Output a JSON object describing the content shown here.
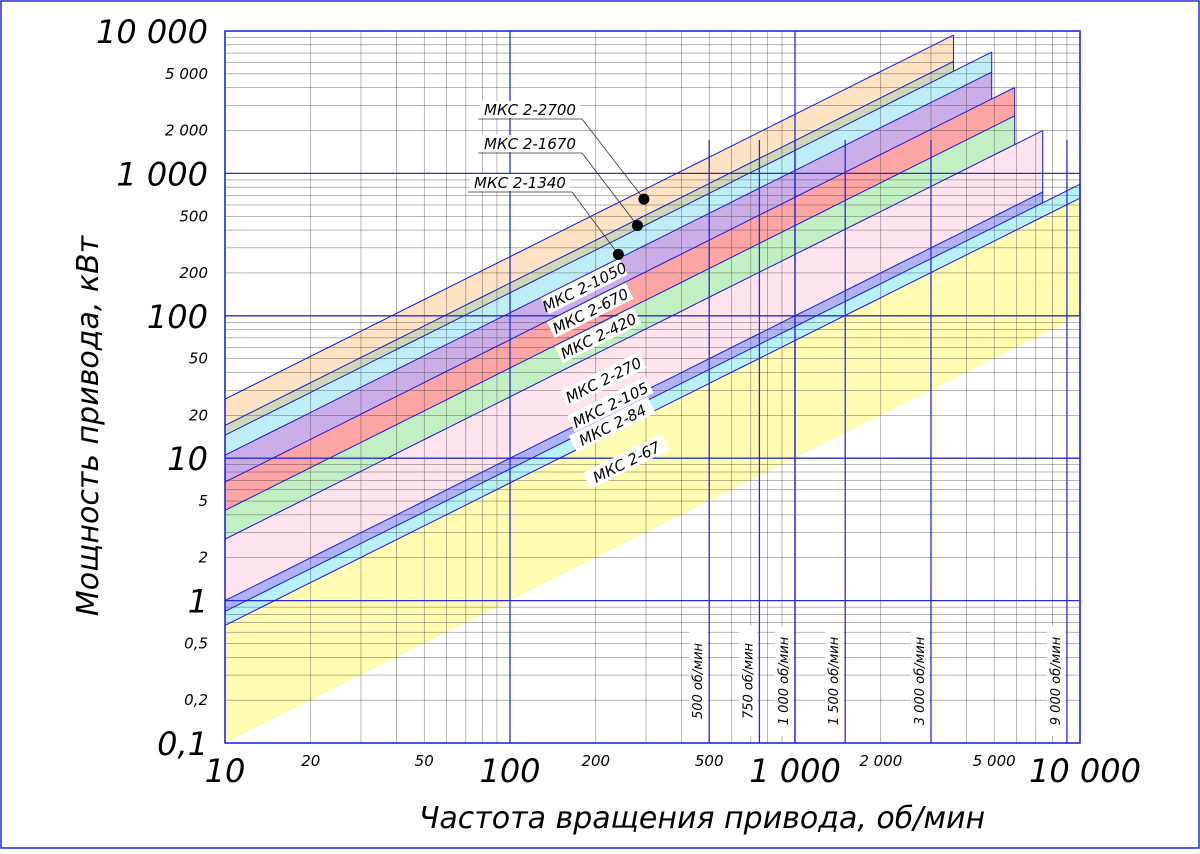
{
  "chart_data": {
    "type": "area",
    "xlabel": "Частота вращения привода, об/мин",
    "ylabel": "Мощность привода, кВт",
    "x_scale": "log",
    "y_scale": "log",
    "xlim": [
      10,
      10000
    ],
    "ylim": [
      0.1,
      10000
    ],
    "x_tick_labels_major": [
      {
        "v": 10,
        "t": "10"
      },
      {
        "v": 100,
        "t": "100"
      },
      {
        "v": 1000,
        "t": "1 000"
      },
      {
        "v": 10000,
        "t": "10 000"
      }
    ],
    "x_tick_labels_minor": [
      {
        "v": 20,
        "t": "20"
      },
      {
        "v": 50,
        "t": "50"
      },
      {
        "v": 200,
        "t": "200"
      },
      {
        "v": 500,
        "t": "500"
      },
      {
        "v": 2000,
        "t": "2 000"
      },
      {
        "v": 5000,
        "t": "5 000"
      }
    ],
    "y_tick_labels_major": [
      {
        "v": 0.1,
        "t": "0,1"
      },
      {
        "v": 1,
        "t": "1"
      },
      {
        "v": 10,
        "t": "10"
      },
      {
        "v": 100,
        "t": "100"
      },
      {
        "v": 1000,
        "t": "1 000"
      },
      {
        "v": 10000,
        "t": "10 000"
      }
    ],
    "y_tick_labels_minor": [
      {
        "v": 0.2,
        "t": "0,2"
      },
      {
        "v": 0.5,
        "t": "0,5"
      },
      {
        "v": 2,
        "t": "2"
      },
      {
        "v": 5,
        "t": "5"
      },
      {
        "v": 20,
        "t": "20"
      },
      {
        "v": 50,
        "t": "50"
      },
      {
        "v": 200,
        "t": "200"
      },
      {
        "v": 500,
        "t": "500"
      },
      {
        "v": 2000,
        "t": "2 000"
      },
      {
        "v": 5000,
        "t": "5 000"
      }
    ],
    "speed_lines": [
      {
        "rpm": 500,
        "label": "500 об/мин"
      },
      {
        "rpm": 750,
        "label": "750 об/мин"
      },
      {
        "rpm": 1000,
        "label": "1 000 об/мин"
      },
      {
        "rpm": 1500,
        "label": "1 500 об/мин"
      },
      {
        "rpm": 3000,
        "label": "3 000 об/мин"
      },
      {
        "rpm": 9000,
        "label": "9 000 об/мин"
      }
    ],
    "bands": [
      {
        "name": "МКС 2-2700",
        "upper_at_10rpm": 26,
        "lower_at_10rpm": 17,
        "x_max": 3600,
        "fill": "#fde2c4"
      },
      {
        "name": "МКС 2-1670",
        "upper_at_10rpm": 17,
        "lower_at_10rpm": 14.5,
        "x_max": 3600,
        "fill": "#cfd9b6"
      },
      {
        "name": "МКС 2-1340",
        "upper_at_10rpm": 14.5,
        "lower_at_10rpm": 10.5,
        "x_max": 4900,
        "fill": "#bfeef9"
      },
      {
        "name": "МКС 2-1050",
        "upper_at_10rpm": 10.5,
        "lower_at_10rpm": 6.8,
        "x_max": 4900,
        "fill": "#cbaee8"
      },
      {
        "name": "МКС 2-670",
        "upper_at_10rpm": 6.8,
        "lower_at_10rpm": 4.3,
        "x_max": 5900,
        "fill": "#fba5a5"
      },
      {
        "name": "МКС 2-420",
        "upper_at_10rpm": 4.3,
        "lower_at_10rpm": 2.7,
        "x_max": 5900,
        "fill": "#c3f0c3"
      },
      {
        "name": "МКС 2-270",
        "upper_at_10rpm": 2.7,
        "lower_at_10rpm": 1.0,
        "x_max": 7400,
        "fill": "#fde4ef"
      },
      {
        "name": "МКС 2-105",
        "upper_at_10rpm": 1.0,
        "lower_at_10rpm": 0.84,
        "x_max": 7400,
        "fill": "#b0b3f7"
      },
      {
        "name": "МКС 2-84",
        "upper_at_10rpm": 0.84,
        "lower_at_10rpm": 0.67,
        "x_max": 10000,
        "fill": "#b8f0fb"
      },
      {
        "name": "МКС 2-67",
        "upper_at_10rpm": 0.67,
        "lower_at_10rpm": 0.1,
        "x_max": 10000,
        "fill": "#fffbb0"
      }
    ],
    "band_slope_decades_per_decade": 1,
    "points": [
      {
        "name": "МКС 2-2700",
        "x": 295,
        "y": 660
      },
      {
        "name": "МКС 2-1670",
        "x": 280,
        "y": 430
      },
      {
        "name": "МКС 2-1340",
        "x": 240,
        "y": 270
      }
    ],
    "callout_labels": [
      {
        "t": "МКС 2-2700",
        "point": 0
      },
      {
        "t": "МКС 2-1670",
        "point": 1
      },
      {
        "t": "МКС 2-1340",
        "point": 2
      }
    ],
    "band_labels": [
      {
        "t": "МКС 2-1050"
      },
      {
        "t": "МКС 2-670"
      },
      {
        "t": "МКС 2-420"
      },
      {
        "t": "МКС 2-270"
      },
      {
        "t": "МКС 2-105"
      },
      {
        "t": "МКС 2-84"
      },
      {
        "t": "МКС 2-67"
      }
    ],
    "grid": true,
    "colors": {
      "grid_major": "#2a2adf",
      "grid_minor": "#333333",
      "band_edge": "#1a1acf",
      "frame": "#2a2adf"
    }
  }
}
